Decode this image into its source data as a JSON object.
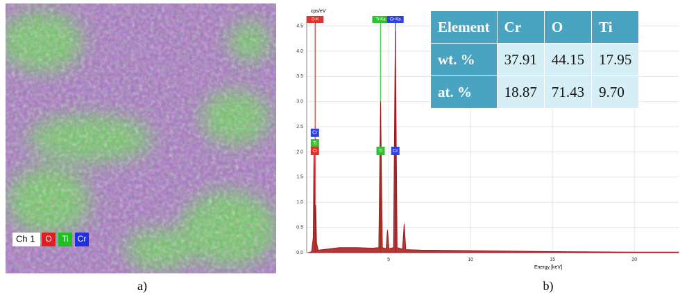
{
  "panel_a": {
    "label": "a)",
    "legend": {
      "title": "Ch 1",
      "items": [
        {
          "name": "O",
          "color": "#e02020"
        },
        {
          "name": "Ti",
          "color": "#20c020"
        },
        {
          "name": "Cr",
          "color": "#2030e0"
        }
      ]
    }
  },
  "panel_b": {
    "label": "b)"
  },
  "table": {
    "header": [
      "Element",
      "Cr",
      "O",
      "Ti"
    ],
    "rows": [
      [
        "wt. %",
        "37.91",
        "44.15",
        "17.95"
      ],
      [
        "at. %",
        "18.87",
        "71.43",
        "9.70"
      ]
    ]
  },
  "chart_data": {
    "type": "line",
    "y_label": "cps/eV",
    "x_label": "Energy [keV]",
    "x": [
      0.1,
      0.3,
      0.4,
      0.45,
      0.5,
      0.55,
      0.6,
      0.7,
      1,
      2,
      3,
      4,
      4.4,
      4.51,
      4.62,
      4.85,
      4.93,
      5.02,
      5.3,
      5.41,
      5.52,
      5.85,
      5.95,
      6.05,
      7,
      10,
      15,
      20,
      22.7
    ],
    "series": [
      {
        "color": "#a01818",
        "values": [
          0,
          0.02,
          0.3,
          2.2,
          0.6,
          0.95,
          0.2,
          0.05,
          0.06,
          0.1,
          0.1,
          0.09,
          0.1,
          3.0,
          0.1,
          0.08,
          0.45,
          0.08,
          0.1,
          4.4,
          0.1,
          0.07,
          0.57,
          0.06,
          0.05,
          0.04,
          0.02,
          0.01,
          0.01
        ]
      }
    ],
    "xlim": [
      0,
      22.7
    ],
    "ylim": [
      0,
      4.7
    ],
    "xticks": [
      5,
      10,
      15,
      20
    ],
    "yticks": [
      {
        "value": 0,
        "label": "0.0"
      },
      0.5,
      {
        "value": 1,
        "label": "1.0"
      },
      1.5,
      {
        "value": 2,
        "label": "2.0"
      },
      2.5,
      {
        "value": 3,
        "label": "3.0"
      },
      3.5,
      {
        "value": 4,
        "label": "4.0"
      },
      4.5
    ],
    "grid": true,
    "element_lines": [
      {
        "label": "O-K",
        "x": 0.52,
        "color": "#e03030"
      },
      {
        "label": "Ti-Ka",
        "x": 4.51,
        "color": "#30c030"
      },
      {
        "label": "Cr-Ka",
        "x": 5.41,
        "color": "#3040e0"
      }
    ],
    "markers": [
      {
        "text": "Cr",
        "x": 0.5,
        "y": 2.38,
        "color": "#3040e0"
      },
      {
        "text": "Ti",
        "x": 0.5,
        "y": 2.17,
        "color": "#30c030"
      },
      {
        "text": "O",
        "x": 0.5,
        "y": 2.02,
        "color": "#e03030"
      },
      {
        "text": "Ti",
        "x": 4.51,
        "y": 2.02,
        "color": "#30c030"
      },
      {
        "text": "Cr",
        "x": 5.41,
        "y": 2.02,
        "color": "#3040e0"
      }
    ]
  }
}
